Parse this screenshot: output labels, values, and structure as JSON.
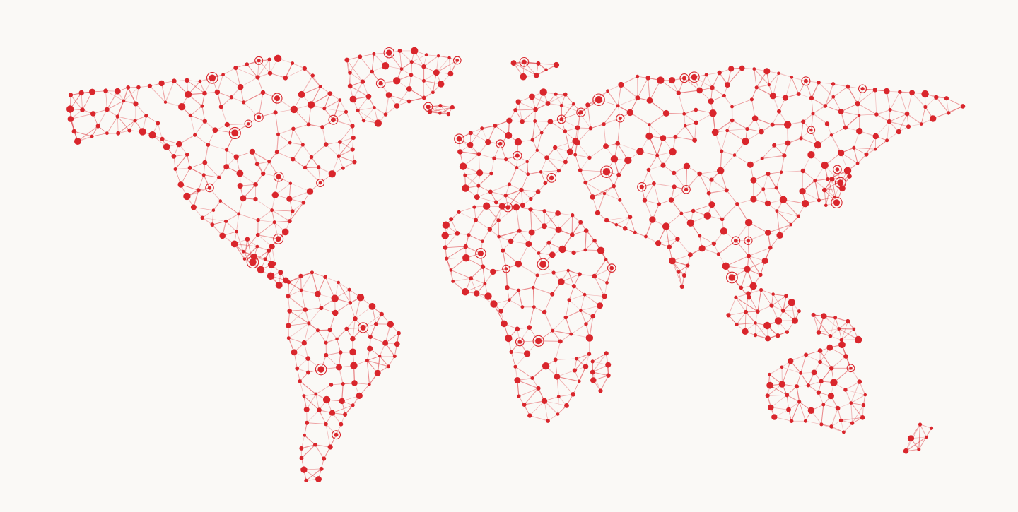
{
  "map": {
    "style": "network world map",
    "colors": {
      "background": "#faf9f6",
      "node": "#d9262c",
      "link": "#e0464b"
    },
    "regions": [
      "north-america",
      "greenland",
      "south-america",
      "europe",
      "africa",
      "asia",
      "japan",
      "southeast-asia",
      "australia",
      "new-zealand",
      "madagascar"
    ]
  }
}
